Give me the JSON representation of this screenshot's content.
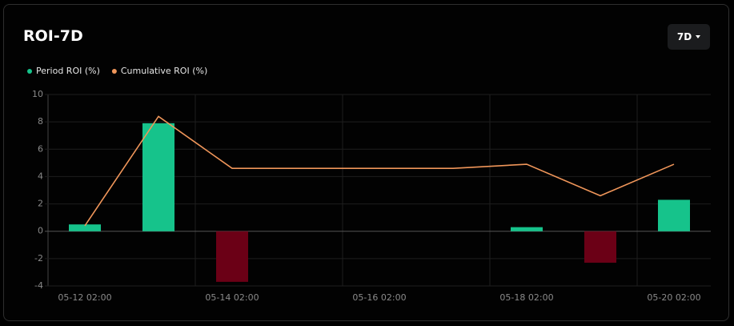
{
  "header": {
    "title": "ROI-7D",
    "range_button": "7D"
  },
  "chart_data": {
    "type": "bar",
    "categories": [
      "05-12 02:00",
      null,
      "05-14 02:00",
      null,
      "05-16 02:00",
      null,
      "05-18 02:00",
      null,
      "05-20 02:00"
    ],
    "series": [
      {
        "name": "Period ROI (%)",
        "type": "bar",
        "color": "#16c38b",
        "negative_color": "#6b0016",
        "values": [
          0.5,
          7.9,
          -3.7,
          0,
          0,
          0,
          0.3,
          -2.3,
          2.3
        ]
      },
      {
        "name": "Cumulative ROI (%)",
        "type": "line",
        "color": "#f0965a",
        "values": [
          0.4,
          8.4,
          4.6,
          4.6,
          4.6,
          4.6,
          4.9,
          2.6,
          4.9
        ]
      }
    ],
    "ylim": [
      -4,
      10
    ],
    "yticks": [
      -4,
      -2,
      0,
      2,
      4,
      6,
      8,
      10
    ],
    "grid": true
  }
}
